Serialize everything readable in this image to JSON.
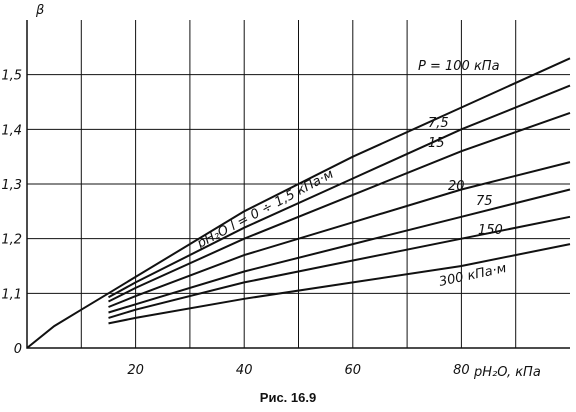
{
  "chart_data": {
    "type": "line",
    "annotation": "P = 100 кПа",
    "ylabel": "β",
    "xlabel": "pH₂O, кПа",
    "caption": "Рис. 16.9",
    "xlim": [
      0,
      100
    ],
    "ylim": [
      1.0,
      1.6
    ],
    "xticks": [
      {
        "value": 10,
        "label": null
      },
      20,
      {
        "value": 30,
        "label": null
      },
      40,
      {
        "value": 50,
        "label": null
      },
      60,
      {
        "value": 70,
        "label": null
      },
      80,
      {
        "value": 90,
        "label": null
      }
    ],
    "yticks": [
      {
        "value": 1.0,
        "label": "0"
      },
      {
        "value": 1.1,
        "label": "1,1"
      },
      {
        "value": 1.2,
        "label": "1,2"
      },
      {
        "value": 1.3,
        "label": "1,3"
      },
      {
        "value": 1.4,
        "label": "1,4"
      },
      {
        "value": 1.5,
        "label": "1,5"
      }
    ],
    "grid": true,
    "color": "#111111",
    "series": [
      {
        "name": "pH₂O l = 0 ÷ 1,5 кПа·м",
        "x": [
          0,
          5,
          10,
          15,
          20,
          40,
          60,
          80,
          100
        ],
        "values": [
          1.0,
          1.04,
          1.07,
          1.1,
          1.13,
          1.25,
          1.35,
          1.44,
          1.53
        ]
      },
      {
        "name": "7,5",
        "x": [
          15,
          20,
          40,
          60,
          80,
          100
        ],
        "values": [
          1.093,
          1.12,
          1.22,
          1.31,
          1.4,
          1.48
        ]
      },
      {
        "name": "15",
        "x": [
          15,
          20,
          40,
          60,
          80,
          100
        ],
        "values": [
          1.085,
          1.11,
          1.2,
          1.28,
          1.36,
          1.43
        ]
      },
      {
        "name": "20",
        "x": [
          15,
          20,
          40,
          60,
          80,
          100
        ],
        "values": [
          1.075,
          1.095,
          1.17,
          1.23,
          1.29,
          1.34
        ]
      },
      {
        "name": "75",
        "x": [
          15,
          20,
          40,
          60,
          80,
          100
        ],
        "values": [
          1.065,
          1.08,
          1.14,
          1.19,
          1.24,
          1.29
        ]
      },
      {
        "name": "150",
        "x": [
          15,
          20,
          40,
          60,
          80,
          100
        ],
        "values": [
          1.055,
          1.07,
          1.12,
          1.16,
          1.2,
          1.24
        ]
      },
      {
        "name": "300 кПа·м",
        "x": [
          15,
          20,
          40,
          60,
          80,
          100
        ],
        "values": [
          1.045,
          1.055,
          1.09,
          1.12,
          1.15,
          1.19
        ]
      }
    ]
  }
}
